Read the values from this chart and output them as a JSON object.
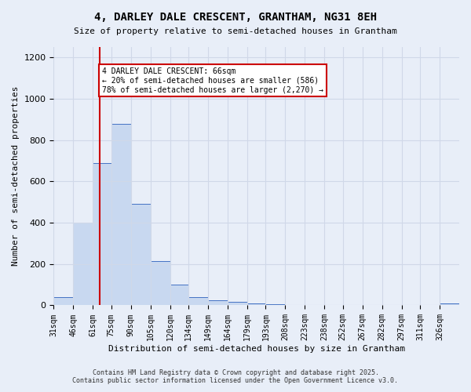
{
  "title1": "4, DARLEY DALE CRESCENT, GRANTHAM, NG31 8EH",
  "title2": "Size of property relative to semi-detached houses in Grantham",
  "xlabel": "Distribution of semi-detached houses by size in Grantham",
  "ylabel": "Number of semi-detached properties",
  "bin_labels": [
    "31sqm",
    "46sqm",
    "61sqm",
    "75sqm",
    "90sqm",
    "105sqm",
    "120sqm",
    "134sqm",
    "149sqm",
    "164sqm",
    "179sqm",
    "193sqm",
    "208sqm",
    "223sqm",
    "238sqm",
    "252sqm",
    "267sqm",
    "282sqm",
    "297sqm",
    "311sqm",
    "326sqm"
  ],
  "bin_edges": [
    31,
    46,
    61,
    75,
    90,
    105,
    120,
    134,
    149,
    164,
    179,
    193,
    208,
    223,
    238,
    252,
    267,
    282,
    297,
    311,
    326,
    341
  ],
  "bar_heights": [
    40,
    400,
    690,
    880,
    490,
    215,
    100,
    40,
    25,
    18,
    10,
    5,
    2,
    1,
    1,
    1,
    0,
    0,
    0,
    0,
    8
  ],
  "bar_color": "#c8d8f0",
  "bar_edge_color": "#4472c4",
  "property_size": 66,
  "property_label": "4 DARLEY DALE CRESCENT: 66sqm",
  "pct_smaller": "20%",
  "n_smaller": 586,
  "pct_larger": "78%",
  "n_larger": 2270,
  "annotation_box_color": "#ffffff",
  "annotation_box_edge": "#cc0000",
  "red_line_color": "#cc0000",
  "ylim": [
    0,
    1250
  ],
  "yticks": [
    0,
    200,
    400,
    600,
    800,
    1000,
    1200
  ],
  "grid_color": "#d0d8e8",
  "bg_color": "#e8eef8",
  "footer1": "Contains HM Land Registry data © Crown copyright and database right 2025.",
  "footer2": "Contains public sector information licensed under the Open Government Licence v3.0."
}
